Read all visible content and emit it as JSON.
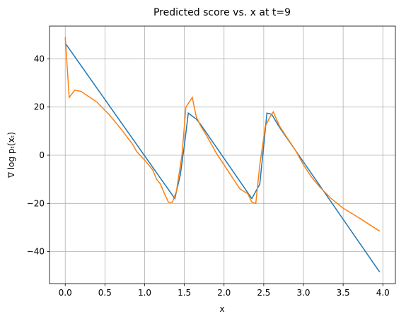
{
  "chart_data": {
    "type": "line",
    "title": "Predicted score vs. x at t=9",
    "xlabel": "x",
    "ylabel": "∇ log pₜ(xₜ)",
    "xlim": [
      -0.198,
      4.158
    ],
    "ylim": [
      -53.3,
      53.6
    ],
    "xticks": [
      {
        "value": 0,
        "label": "0.0"
      },
      0.5,
      {
        "value": 1,
        "label": "1.0"
      },
      1.5,
      {
        "value": 2,
        "label": "2.0"
      },
      2.5,
      {
        "value": 3,
        "label": "3.0"
      },
      3.5,
      {
        "value": 4,
        "label": "4.0"
      }
    ],
    "yticks": [
      {
        "value": -40,
        "label": "−40"
      },
      {
        "value": -20,
        "label": "−20"
      },
      0,
      20,
      40
    ],
    "grid": true,
    "series": [
      {
        "color": "#1f77b4",
        "x": [
          0,
          1.38,
          1.45,
          1.5,
          1.55,
          1.65,
          1.7,
          2.35,
          2.45,
          2.5,
          2.54,
          2.6,
          2.7,
          3.96
        ],
        "values": [
          46.5,
          -18,
          -8,
          4,
          17.5,
          15,
          13,
          -18,
          -12,
          4,
          17.5,
          17,
          11.5,
          -48.5
        ]
      },
      {
        "color": "#ff7f0e",
        "x": [
          0,
          0.05,
          0.12,
          0.2,
          0.4,
          0.55,
          0.7,
          0.85,
          0.9,
          1.0,
          1.1,
          1.15,
          1.2,
          1.25,
          1.3,
          1.35,
          1.4,
          1.47,
          1.52,
          1.6,
          1.65,
          1.7,
          1.8,
          1.9,
          2.0,
          2.1,
          2.2,
          2.3,
          2.35,
          2.4,
          2.45,
          2.52,
          2.58,
          2.62,
          2.7,
          2.8,
          2.9,
          3.0,
          3.1,
          3.2,
          3.35,
          3.5,
          3.7,
          3.96
        ],
        "values": [
          49,
          24,
          27,
          26.5,
          22,
          17,
          11,
          4.5,
          1.5,
          -2,
          -6,
          -10,
          -12,
          -16,
          -19.5,
          -19.5,
          -15,
          0,
          20,
          24,
          16,
          12.5,
          7,
          1,
          -4,
          -9,
          -14,
          -16,
          -19.5,
          -20,
          -4,
          12,
          16,
          18,
          12,
          7,
          2,
          -4,
          -9,
          -13,
          -18,
          -22,
          -26,
          -31.5
        ]
      }
    ]
  }
}
